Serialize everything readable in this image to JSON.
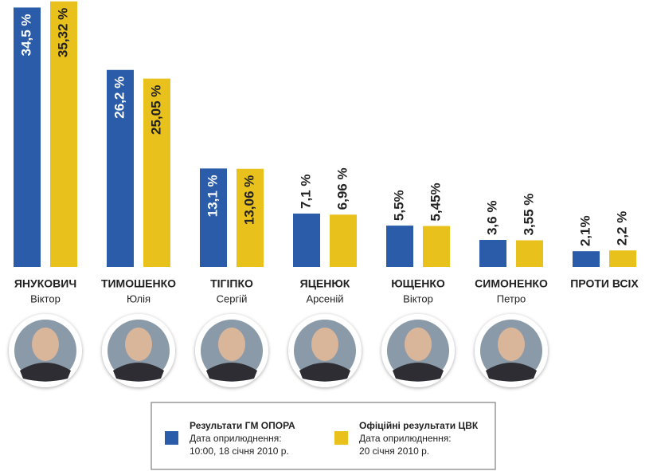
{
  "chart_data": {
    "type": "bar",
    "categories": [
      "ЯНУКОВИЧ",
      "ТИМОШЕНКО",
      "ТІГІПКО",
      "ЯЦЕНЮК",
      "ЮЩЕНКО",
      "СИМОНЕНКО",
      "ПРОТИ ВСІХ"
    ],
    "first_names": [
      "Віктор",
      "Юлія",
      "Сергій",
      "Арсеній",
      "Віктор",
      "Петро",
      null
    ],
    "series": [
      {
        "name": "Результати ГМ ОПОРА",
        "note": [
          "Дата оприлюднення:",
          "10:00, 18 січня 2010 р."
        ],
        "color": "#2a5caa",
        "values": [
          34.5,
          26.2,
          13.1,
          7.1,
          5.5,
          3.6,
          2.1
        ],
        "value_labels": [
          "34,5 %",
          "26,2 %",
          "13,1 %",
          "7,1 %",
          "5,5%",
          "3,6 %",
          "2,1%"
        ]
      },
      {
        "name": "Офіційні результати ЦВК",
        "note": [
          "Дата оприлюднення:",
          "20 січня 2010 р."
        ],
        "color": "#e8c11c",
        "values": [
          35.32,
          25.05,
          13.06,
          6.96,
          5.45,
          3.55,
          2.2
        ],
        "value_labels": [
          "35,32 %",
          "25,05 %",
          "13,06 %",
          "6,96 %",
          "5,45%",
          "3,55 %",
          "2,2 %"
        ]
      }
    ],
    "ylim": [
      0,
      35.5
    ]
  }
}
